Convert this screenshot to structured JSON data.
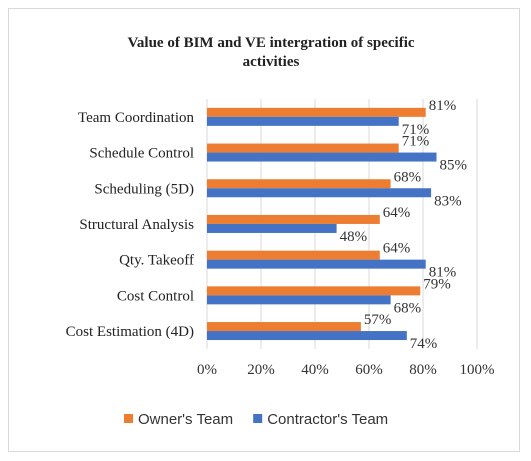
{
  "chart_data": {
    "type": "bar",
    "orientation": "horizontal",
    "title": "Value of BIM and VE intergration of specific activities",
    "title_lines": [
      "Value of BIM and VE intergration of specific",
      "activities"
    ],
    "categories": [
      "Team Coordination",
      "Schedule Control",
      "Scheduling (5D)",
      "Structural Analysis",
      "Qty. Takeoff",
      "Cost Control",
      "Cost Estimation (4D)"
    ],
    "series": [
      {
        "name": "Owner's Team",
        "color": "#ED7D31",
        "values": [
          81,
          71,
          68,
          64,
          64,
          79,
          57
        ]
      },
      {
        "name": "Contractor's Team",
        "color": "#4472C4",
        "values": [
          71,
          85,
          83,
          48,
          81,
          68,
          74
        ]
      }
    ],
    "xlim": [
      0,
      100
    ],
    "xticks": [
      "0%",
      "20%",
      "40%",
      "60%",
      "80%",
      "100%"
    ],
    "value_format": "%",
    "grid": true,
    "legend_position": "bottom"
  }
}
